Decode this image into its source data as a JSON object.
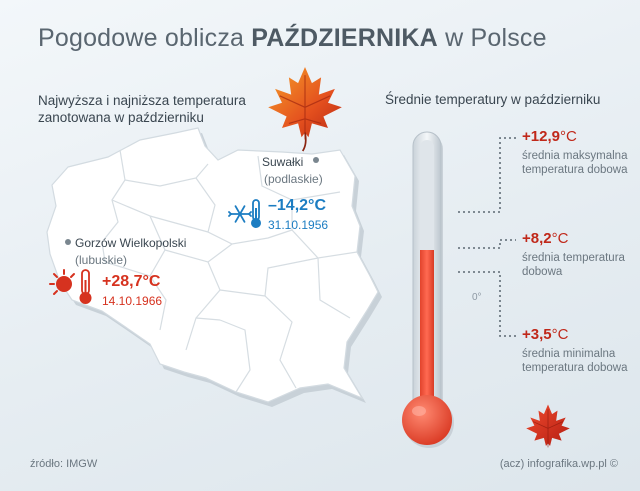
{
  "title_normal": "Pogodowe oblicza ",
  "title_bold": "PAŹDZIERNIKA",
  "title_end": " w Polsce",
  "subtitle_left": "Najwyższa i najniższa temperatura zanotowana w październiku",
  "subtitle_right": "Średnie temperatury w październiku",
  "record_cold": {
    "city": "Suwałki",
    "region": "(podlaskie)",
    "temp": "–14,2°C",
    "date": "31.10.1956",
    "icon": "snowflake-thermometer-icon",
    "color": "#1c7dc2"
  },
  "record_hot": {
    "city": "Gorzów Wielkopolski",
    "region": "(lubuskie)",
    "temp": "+28,7°C",
    "date": "14.10.1966",
    "icon": "sun-thermometer-icon",
    "color": "#d6321f"
  },
  "averages": [
    {
      "value": "+12,9",
      "unit": "°C",
      "label": "średnia maksymalna temperatura dobowa"
    },
    {
      "value": "+8,2",
      "unit": "°C",
      "label": "średnia temperatura dobowa"
    },
    {
      "value": "+3,5",
      "unit": "°C",
      "label": "średnia minimalna temperatura dobowa"
    }
  ],
  "thermometer_zero": "0°",
  "source": "źródło: IMGW",
  "credit": "(acz) infografika.wp.pl ©",
  "colors": {
    "accent_red": "#c0281a",
    "cold_blue": "#1c7dc2",
    "mercury": "#f0503a"
  }
}
